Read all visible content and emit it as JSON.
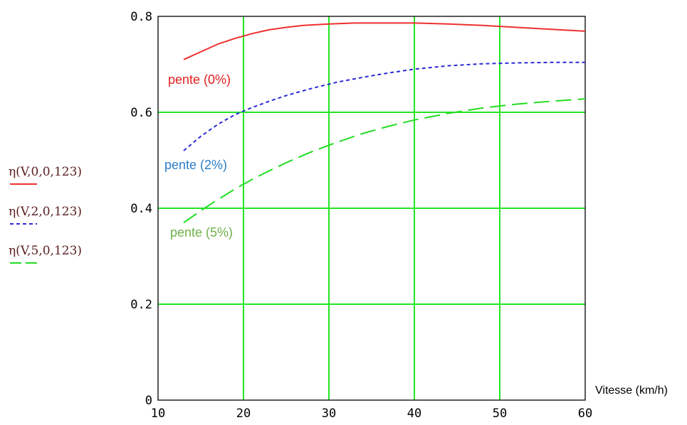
{
  "chart_data": {
    "type": "line",
    "xlabel": "Vitesse (km/h)",
    "ylabel": "",
    "xlim": [
      10,
      60
    ],
    "ylim": [
      0,
      0.8
    ],
    "x_ticks": [
      10,
      20,
      30,
      40,
      50,
      60
    ],
    "x_tick_labels": [
      "10",
      "20",
      "30",
      "40",
      "50",
      "60"
    ],
    "y_ticks": [
      0,
      0.2,
      0.4,
      0.6,
      0.8
    ],
    "y_tick_labels": [
      "0",
      "0.2",
      "0.4",
      "0.6",
      "0.8"
    ],
    "grid": true,
    "grid_color": "#22e622",
    "series": [
      {
        "name": "η(V,0,0,123)",
        "color": "#ee3030",
        "dash": "solid",
        "annotation": "pente (0%)",
        "annotation_color": "#e02020",
        "x": [
          13,
          15,
          17,
          19,
          21,
          23,
          25,
          27,
          30,
          33,
          36,
          40,
          44,
          48,
          52,
          56,
          60
        ],
        "y": [
          0.71,
          0.726,
          0.742,
          0.754,
          0.764,
          0.772,
          0.777,
          0.781,
          0.784,
          0.786,
          0.786,
          0.786,
          0.784,
          0.781,
          0.777,
          0.773,
          0.769
        ]
      },
      {
        "name": "η(V,2,0,123)",
        "color": "#2b2bd8",
        "dash": "short",
        "annotation": "pente (2%)",
        "annotation_color": "#2c7ec8",
        "x": [
          13,
          15,
          17,
          19,
          21,
          23,
          25,
          28,
          31,
          34,
          37,
          40,
          44,
          48,
          52,
          56,
          60
        ],
        "y": [
          0.52,
          0.55,
          0.575,
          0.595,
          0.61,
          0.623,
          0.635,
          0.65,
          0.663,
          0.673,
          0.682,
          0.69,
          0.697,
          0.701,
          0.703,
          0.704,
          0.704
        ]
      },
      {
        "name": "η(V,5,0,123)",
        "color": "#22dd22",
        "dash": "long",
        "annotation": "pente (5%)",
        "annotation_color": "#6fb04a",
        "x": [
          13,
          15,
          17,
          19,
          21,
          23,
          25,
          28,
          31,
          34,
          37,
          40,
          44,
          48,
          52,
          56,
          60
        ],
        "y": [
          0.37,
          0.395,
          0.418,
          0.44,
          0.46,
          0.478,
          0.495,
          0.518,
          0.538,
          0.556,
          0.571,
          0.584,
          0.598,
          0.609,
          0.617,
          0.623,
          0.628
        ]
      }
    ]
  }
}
